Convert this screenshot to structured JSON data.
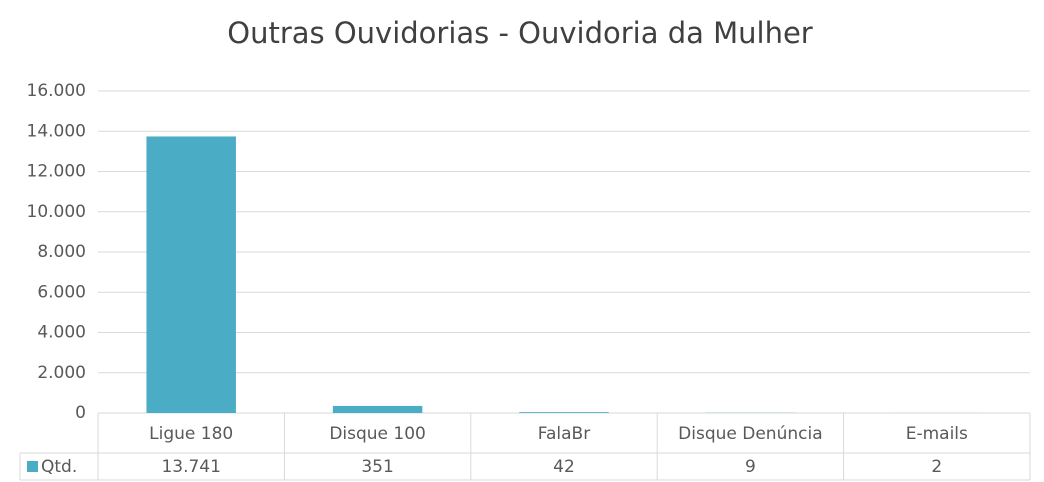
{
  "chart_data": {
    "type": "bar",
    "title": "Outras Ouvidorias - Ouvidoria da Mulher",
    "categories": [
      "Ligue 180",
      "Disque 100",
      "FalaBr",
      "Disque Denúncia",
      "E-mails"
    ],
    "series": [
      {
        "name": "Qtd.",
        "color": "#4bacc6",
        "values": [
          13741,
          351,
          42,
          9,
          2
        ],
        "value_labels": [
          "13.741",
          "351",
          "42",
          "9",
          "2"
        ]
      }
    ],
    "ylim": [
      0,
      16000
    ],
    "yticks": [
      0,
      {
        "value": 2000,
        "label": "2.000"
      },
      {
        "value": 4000,
        "label": "4.000"
      },
      {
        "value": 6000,
        "label": "6.000"
      },
      {
        "value": 8000,
        "label": "8.000"
      },
      {
        "value": 10000,
        "label": "10.000"
      },
      {
        "value": 12000,
        "label": "12.000"
      },
      {
        "value": 14000,
        "label": "14.000"
      },
      {
        "value": 16000,
        "label": "16.000"
      }
    ],
    "grid": true
  }
}
